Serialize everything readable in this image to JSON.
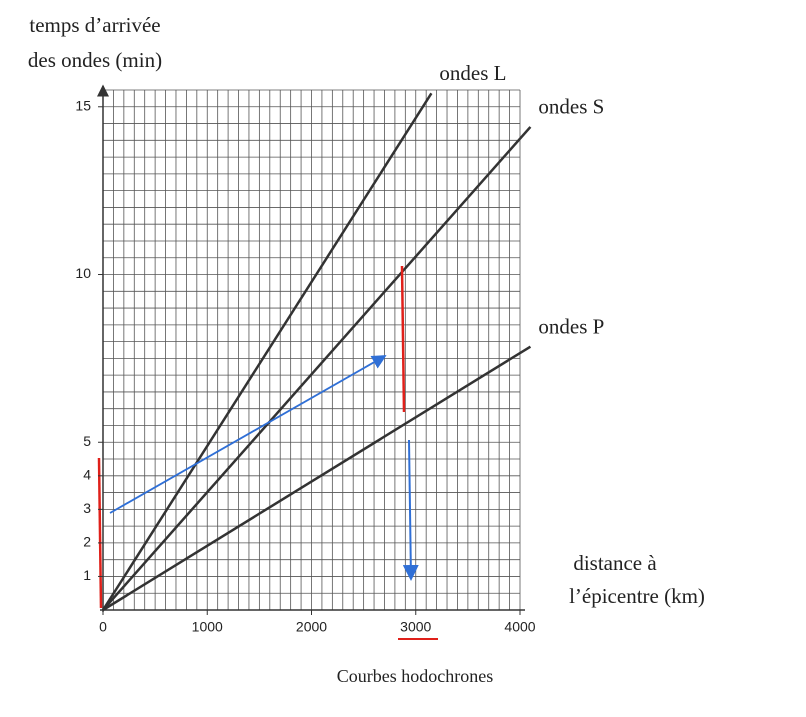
{
  "chart_data": {
    "type": "line",
    "caption": "Courbes hodochrones",
    "ylabel": [
      "temps d’arrivée",
      "des ondes (min)"
    ],
    "xlabel": [
      "distance à",
      "l’épicentre (km)"
    ],
    "xlim": [
      0,
      4000
    ],
    "ylim": [
      0,
      15.5
    ],
    "xticks": [
      0,
      1000,
      2000,
      3000,
      4000
    ],
    "yticks": [
      1,
      2,
      3,
      4,
      5,
      10,
      15
    ],
    "minor_xticks": [
      0,
      100,
      200,
      300,
      400,
      500,
      600,
      700,
      800,
      900,
      1000,
      1100,
      1200,
      1300,
      1400,
      1500,
      1600,
      1700,
      1800,
      1900,
      2000,
      2100,
      2200,
      2300,
      2400,
      2500,
      2600,
      2700,
      2800,
      2900,
      3000,
      3100,
      3200,
      3300,
      3400,
      3500,
      3600,
      3700,
      3800,
      3900,
      4000
    ],
    "minor_yticks": [
      0.5,
      1,
      1.5,
      2,
      2.5,
      3,
      3.5,
      4,
      4.5,
      5,
      5.5,
      6,
      6.5,
      7,
      7.5,
      8,
      8.5,
      9,
      9.5,
      10,
      10.5,
      11,
      11.5,
      12,
      12.5,
      13,
      13.5,
      14,
      14.5,
      15,
      15.5
    ],
    "grid": true,
    "series": [
      {
        "name": "ondes L",
        "color": "#333333",
        "x": [
          0,
          3150
        ],
        "values": [
          0,
          15.4
        ]
      },
      {
        "name": "ondes S",
        "color": "#333333",
        "x": [
          0,
          4100
        ],
        "values": [
          0,
          14.4
        ]
      },
      {
        "name": "ondes P",
        "color": "#333333",
        "x": [
          0,
          4100
        ],
        "values": [
          0,
          7.85
        ]
      }
    ]
  }
}
